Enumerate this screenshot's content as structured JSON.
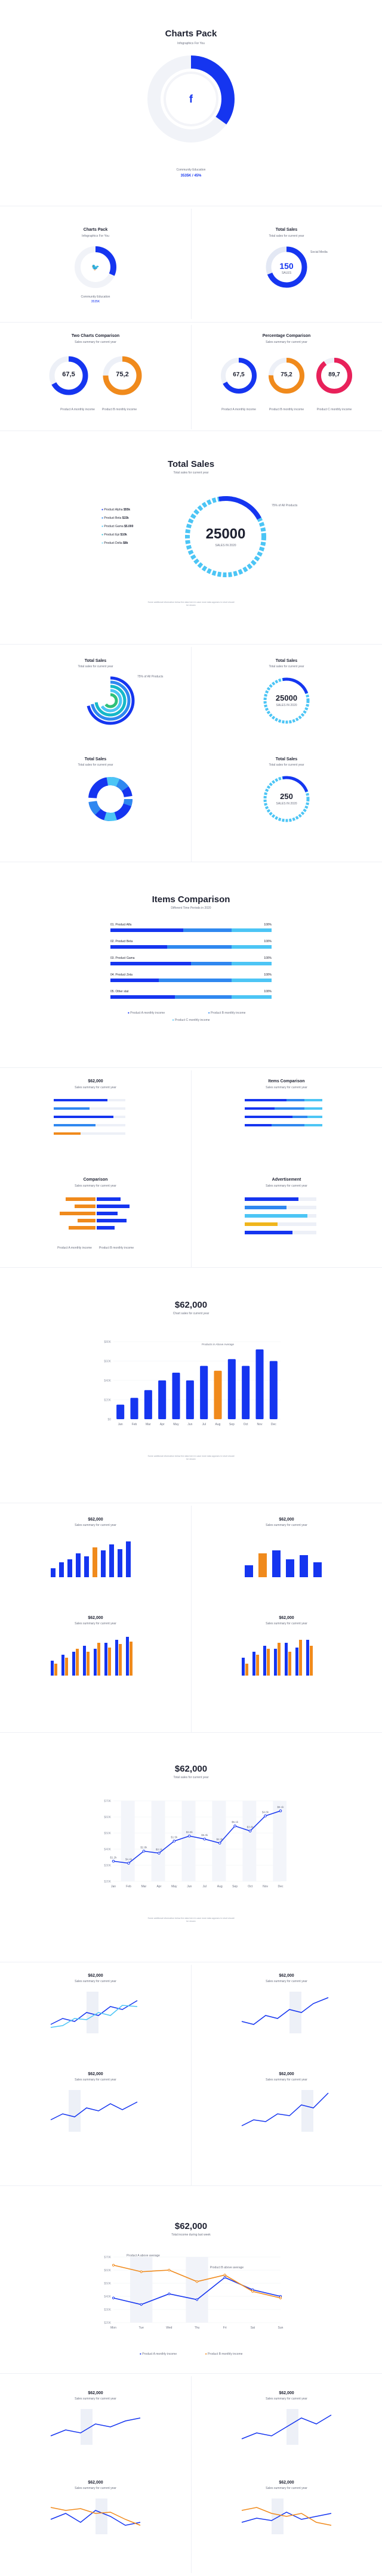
{
  "colors": {
    "blue": "#1535f0",
    "mid_blue": "#2f88f0",
    "light_blue": "#4cc5f5",
    "orange": "#f08a1c",
    "pink": "#e8215a",
    "grey": "#edf0f7",
    "text": "#1d2030"
  },
  "hero": {
    "title": "Charts Pack",
    "subtitle": "Infographics For You",
    "icon": "facebook-icon",
    "caption": "Community Education",
    "value_text": "3535K / 45%"
  },
  "cards_row1": {
    "twitter": {
      "title": "Charts Pack",
      "subtitle": "Infographics For You",
      "icon": "twitter-icon",
      "caption": "Community Education",
      "value_text": "3535K"
    },
    "total_sales": {
      "title": "Total Sales",
      "subtitle": "Total sales for current year",
      "value": "150",
      "unit": "SALES",
      "legend": "Social Media"
    }
  },
  "two_charts": {
    "title": "Two Charts Comparison",
    "subtitle": "Sales summary for current year",
    "values": [
      "67,5",
      "75,2"
    ],
    "legend": [
      "Product A monthly income",
      "Product B monthly income"
    ]
  },
  "percentage": {
    "title": "Percentage Comparison",
    "subtitle": "Sales summary for current year",
    "values": [
      "67,5",
      "75,2",
      "89,7"
    ],
    "legend": [
      "Product A monthly income",
      "Product B monthly income",
      "Product C monthly income"
    ]
  },
  "total_sales_main": {
    "title": "Total Sales",
    "subtitle": "Total sales for current year",
    "legend": [
      {
        "label": "Product Alpha",
        "value": "$55k"
      },
      {
        "label": "Product Beta",
        "value": "$15k"
      },
      {
        "label": "Product Gama",
        "value": "$5.000"
      },
      {
        "label": "Product Epi",
        "value": "$10k"
      },
      {
        "label": "Product Delta",
        "value": "$8k"
      }
    ],
    "value": "25000",
    "unit": "SALES IN 2020",
    "callout": "75% of All Products",
    "note": "Some additional information below the data here in case more data appears in short should be shown"
  },
  "small_sales": [
    {
      "title": "Total Sales",
      "subtitle": "Total sales for current year",
      "value": "",
      "callout": "75% of All Products"
    },
    {
      "title": "Total Sales",
      "subtitle": "Total sales for current year",
      "value": "25000",
      "unit": "SALES IN 2020",
      "callout": "75% of All Products"
    },
    {
      "title": "Total Sales",
      "subtitle": "Total sales for current year",
      "value": ""
    },
    {
      "title": "Total Sales",
      "subtitle": "Total sales for current year",
      "value": "250",
      "unit": "SALES IN 2020",
      "callout": "75% of All Products"
    }
  ],
  "small_legend": [
    "Product Alpha",
    "Product Beta",
    "Product Gama",
    "Product Epi",
    "Product Delta"
  ],
  "items_comparison": {
    "title": "Items Comparison",
    "subtitle": "Different Time Periods in 2020",
    "rows": [
      {
        "label": "01. Product Alfa",
        "pct": "100%"
      },
      {
        "label": "02. Product Beta",
        "pct": "100%"
      },
      {
        "label": "03. Product Gama",
        "pct": "100%"
      },
      {
        "label": "04. Product Zeta",
        "pct": "100%"
      },
      {
        "label": "05. Other stat",
        "pct": "100%"
      }
    ],
    "legend": [
      "Product A monthly income",
      "Product B monthly income",
      "Product C monthly income"
    ]
  },
  "small_compare": [
    {
      "title": "$62,000",
      "subtitle": "Sales summary for current year"
    },
    {
      "title": "Items Comparison",
      "subtitle": "Sales summary for current year"
    }
  ],
  "comparison": {
    "title": "Comparison",
    "subtitle": "Sales summary for current year",
    "legend": [
      "Product A monthly income",
      "Product B monthly income"
    ]
  },
  "advertisement": {
    "title": "Advertisement",
    "subtitle": "Sales summary for current year"
  },
  "bar_main": {
    "title": "$62,000",
    "subtitle": "Chart sales for current year",
    "callout": "Products in Above Average",
    "note": "Some additional information below the data here in case more data appears in short should be shown"
  },
  "line_main": {
    "title": "$62,000",
    "subtitle": "Total sales for current year",
    "note": "Some additional information below the data here in case more data appears in short should be shown"
  },
  "small_titles": {
    "title": "$62,000",
    "subtitle": "Sales summary for current year"
  },
  "income_main": {
    "title": "$62,000",
    "subtitle": "Total income during last week",
    "callout_a": "Product A above average",
    "callout_b": "Product B above average",
    "legend": [
      "Product A monthly income",
      "Product B monthly income"
    ]
  },
  "chart_data": [
    {
      "type": "bar",
      "title": "$62,000",
      "categories": [
        "Jan",
        "Feb",
        "Mar",
        "Apr",
        "May",
        "Jun",
        "Jul",
        "Aug",
        "Sep",
        "Oct",
        "Nov",
        "Dec"
      ],
      "values": [
        15,
        22,
        30,
        40,
        48,
        40,
        55,
        50,
        62,
        55,
        72,
        60
      ],
      "ylim": [
        0,
        80
      ],
      "yticks": [
        "$80K",
        "$60K",
        "$40K",
        "$20K",
        "$0"
      ],
      "highlight_index": 7
    },
    {
      "type": "line",
      "title": "$62,000",
      "categories": [
        "Jan",
        "Feb",
        "Mar",
        "Apr",
        "May",
        "Jun",
        "Jul",
        "Aug",
        "Sep",
        "Oct",
        "Nov",
        "Dec"
      ],
      "values": [
        20,
        18,
        30,
        28,
        40,
        45,
        42,
        38,
        55,
        50,
        65,
        70
      ],
      "point_labels": [
        "$1.2k",
        "$4.4k",
        "$2.8k",
        "$3.1k",
        "$1.5k",
        "$3.8k",
        "$5.0k",
        "$4.3k",
        "$6.1k",
        "$3.0k",
        "$4.8k",
        "$8.1k"
      ],
      "ylim": [
        0,
        80
      ],
      "yticks": [
        "$70K",
        "$60K",
        "$50K",
        "$40K",
        "$30K",
        "$20K"
      ]
    },
    {
      "type": "line",
      "title": "$62,000",
      "categories": [
        "Mon",
        "Tue",
        "Wed",
        "Thu",
        "Fri",
        "Sat",
        "Sun"
      ],
      "series": [
        {
          "name": "Product A monthly income",
          "values": [
            30,
            22,
            35,
            28,
            55,
            40,
            32
          ]
        },
        {
          "name": "Product B monthly income",
          "values": [
            70,
            62,
            64,
            50,
            58,
            38,
            30
          ]
        }
      ],
      "ylim": [
        0,
        80
      ],
      "yticks": [
        "$70K",
        "$60K",
        "$50K",
        "$40K",
        "$30K",
        "$20K"
      ]
    }
  ]
}
